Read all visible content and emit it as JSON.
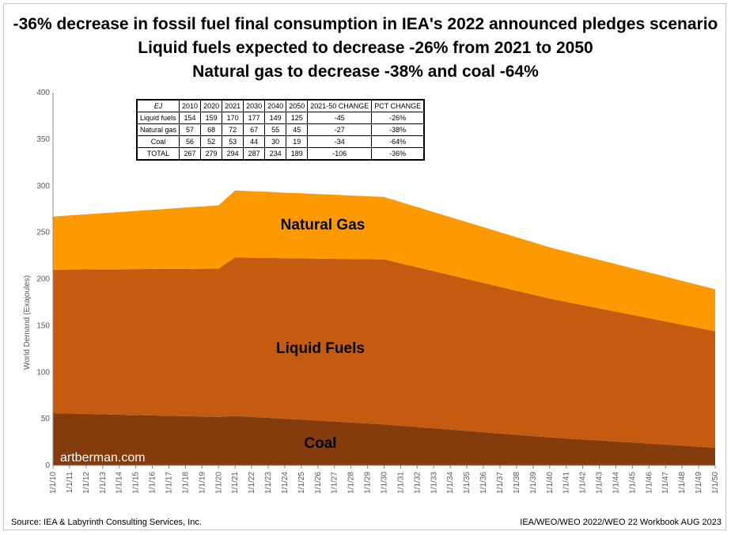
{
  "titles": [
    "-36% decrease in fossil fuel final consumption in IEA's 2022 announced pledges scenario",
    "Liquid fuels expected to decrease -26% from 2021 to 2050",
    "Natural gas to decrease -38% and coal -64%"
  ],
  "source": "Source:  IEA & Labyrinth Consulting Services, Inc.",
  "credit": "IEA/WEO/WEO 2022/WEO 22 Workbook AUG 2023",
  "watermark": "artberman.com",
  "table": {
    "header": [
      "EJ",
      "2010",
      "2020",
      "2021",
      "2030",
      "2040",
      "2050",
      "2021-50 CHANGE",
      "PCT CHANGE"
    ],
    "rows": [
      [
        "Liquid fuels",
        "154",
        "159",
        "170",
        "177",
        "149",
        "125",
        "-45",
        "-26%"
      ],
      [
        "Natural gas",
        "57",
        "68",
        "72",
        "67",
        "55",
        "45",
        "-27",
        "-38%"
      ],
      [
        "Coal",
        "56",
        "52",
        "53",
        "44",
        "30",
        "19",
        "-34",
        "-64%"
      ],
      [
        "TOTAL",
        "267",
        "279",
        "294",
        "287",
        "234",
        "189",
        "-106",
        "-36%"
      ]
    ]
  },
  "colors": {
    "coal": "#843c0c",
    "liquid": "#c55a11",
    "gas": "#ff9900"
  },
  "chart_data": {
    "type": "area",
    "ylabel": "World Demand (Exajoules)",
    "xlabel": "",
    "ylim": [
      0,
      400
    ],
    "yticks": [
      0,
      50,
      100,
      150,
      200,
      250,
      300,
      350,
      400
    ],
    "grid": false,
    "legend": "none",
    "stacked": true,
    "area_labels": [
      "Coal",
      "Liquid Fuels",
      "Natural Gas"
    ],
    "x": [
      "1/1/10",
      "1/1/11",
      "1/1/12",
      "1/1/13",
      "1/1/14",
      "1/1/15",
      "1/1/16",
      "1/1/17",
      "1/1/18",
      "1/1/19",
      "1/1/20",
      "1/1/21",
      "1/1/22",
      "1/1/23",
      "1/1/24",
      "1/1/25",
      "1/1/26",
      "1/1/27",
      "1/1/28",
      "1/1/29",
      "1/1/30",
      "1/1/31",
      "1/1/32",
      "1/1/33",
      "1/1/34",
      "1/1/35",
      "1/1/36",
      "1/1/37",
      "1/1/38",
      "1/1/39",
      "1/1/40",
      "1/1/41",
      "1/1/42",
      "1/1/43",
      "1/1/44",
      "1/1/45",
      "1/1/46",
      "1/1/47",
      "1/1/48",
      "1/1/49",
      "1/1/50"
    ],
    "series": [
      {
        "name": "Coal",
        "values": [
          56,
          55.6,
          55.2,
          54.8,
          54.4,
          54,
          53.6,
          53.2,
          52.8,
          52.4,
          52,
          53,
          52,
          51,
          50,
          49,
          48,
          47,
          46,
          45,
          44,
          42.6,
          41.2,
          39.8,
          38.4,
          37,
          35.6,
          34.2,
          32.8,
          31.4,
          30,
          28.9,
          27.8,
          26.7,
          25.6,
          24.5,
          23.4,
          22.3,
          21.2,
          20.1,
          19
        ]
      },
      {
        "name": "Liquid Fuels",
        "values": [
          154,
          154.5,
          155,
          155.5,
          156,
          156.5,
          157,
          157.5,
          158,
          158.5,
          159,
          170,
          170.8,
          171.6,
          172.3,
          173.1,
          173.9,
          174.7,
          175.4,
          176.2,
          177,
          174.2,
          171.4,
          168.6,
          165.8,
          163,
          160.2,
          157.4,
          154.6,
          151.8,
          149,
          146.6,
          144.2,
          141.8,
          139.4,
          137,
          134.6,
          132.2,
          129.8,
          127.4,
          125
        ]
      },
      {
        "name": "Natural Gas",
        "values": [
          57,
          58.1,
          59.2,
          60.3,
          61.4,
          62.5,
          63.6,
          64.7,
          65.8,
          66.9,
          68,
          72,
          71.4,
          70.9,
          70.3,
          69.8,
          69.2,
          68.7,
          68.1,
          67.6,
          67,
          65.8,
          64.6,
          63.4,
          62.2,
          61,
          59.8,
          58.6,
          57.4,
          56.2,
          55,
          54,
          53,
          52,
          51,
          50,
          49,
          48,
          47,
          46,
          45
        ]
      }
    ]
  }
}
